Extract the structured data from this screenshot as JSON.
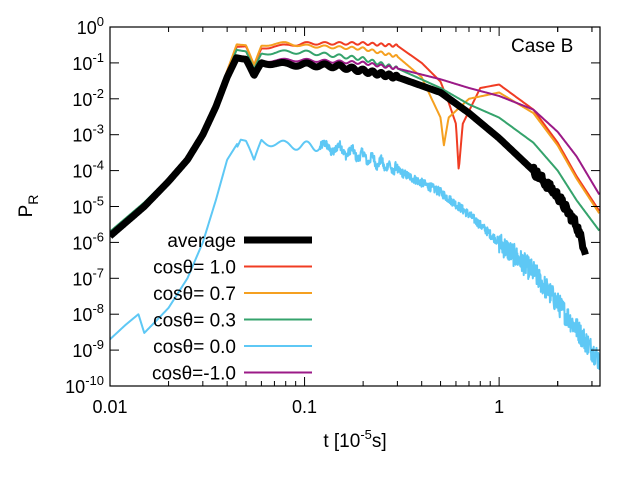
{
  "chart_data": {
    "type": "line",
    "title": "",
    "annotation": "Case B",
    "xlabel": {
      "base": "t [10",
      "sup": "-5",
      "suffix": "s]"
    },
    "ylabel": {
      "base": "P",
      "sub": "R"
    },
    "xscale": "log",
    "yscale": "log",
    "xlim": [
      0.01,
      3.3
    ],
    "ylim": [
      1e-10,
      1
    ],
    "grid": false,
    "legend_position": "left-lower",
    "x_ticks": [
      {
        "value": 0.01,
        "label": "0.01"
      },
      {
        "value": 0.1,
        "label": "0.1"
      },
      {
        "value": 1,
        "label": "1"
      }
    ],
    "y_ticks": [
      {
        "exp": 0,
        "base": "10",
        "sup": "0"
      },
      {
        "exp": -1,
        "base": "10",
        "sup": "-1"
      },
      {
        "exp": -2,
        "base": "10",
        "sup": "-2"
      },
      {
        "exp": -3,
        "base": "10",
        "sup": "-3"
      },
      {
        "exp": -4,
        "base": "10",
        "sup": "-4"
      },
      {
        "exp": -5,
        "base": "10",
        "sup": "-5"
      },
      {
        "exp": -6,
        "base": "10",
        "sup": "-6"
      },
      {
        "exp": -7,
        "base": "10",
        "sup": "-7"
      },
      {
        "exp": -8,
        "base": "10",
        "sup": "-8"
      },
      {
        "exp": -9,
        "base": "10",
        "sup": "-9"
      },
      {
        "exp": -10,
        "base": "10",
        "sup": "-10"
      }
    ],
    "series": [
      {
        "name": "average",
        "label": "average",
        "color": "#000000",
        "thick": true,
        "points": [
          [
            0.01,
            1.5e-06
          ],
          [
            0.015,
            1e-05
          ],
          [
            0.02,
            5e-05
          ],
          [
            0.025,
            0.0002
          ],
          [
            0.03,
            0.001
          ],
          [
            0.035,
            0.006
          ],
          [
            0.04,
            0.04
          ],
          [
            0.045,
            0.15
          ],
          [
            0.05,
            0.12
          ],
          [
            0.055,
            0.04
          ],
          [
            0.06,
            0.1
          ],
          [
            0.07,
            0.1
          ],
          [
            0.08,
            0.09
          ],
          [
            0.1,
            0.09
          ],
          [
            0.15,
            0.08
          ],
          [
            0.2,
            0.06
          ],
          [
            0.3,
            0.04
          ],
          [
            0.5,
            0.015
          ],
          [
            0.7,
            0.004
          ],
          [
            1.0,
            0.0008
          ],
          [
            1.5,
            0.0001
          ],
          [
            2.0,
            2e-05
          ],
          [
            2.5,
            3e-06
          ],
          [
            2.8,
            5e-07
          ]
        ],
        "osc": 0.04
      },
      {
        "name": "cos1.0",
        "label": "cosθ= 1.0",
        "color": "#f03c23",
        "points": [
          [
            0.01,
            1.8e-06
          ],
          [
            0.015,
            1.2e-05
          ],
          [
            0.02,
            6e-05
          ],
          [
            0.025,
            0.00025
          ],
          [
            0.03,
            0.0013
          ],
          [
            0.035,
            0.008
          ],
          [
            0.04,
            0.06
          ],
          [
            0.045,
            0.3
          ],
          [
            0.05,
            0.28
          ],
          [
            0.055,
            0.08
          ],
          [
            0.06,
            0.25
          ],
          [
            0.07,
            0.3
          ],
          [
            0.08,
            0.3
          ],
          [
            0.1,
            0.35
          ],
          [
            0.2,
            0.35
          ],
          [
            0.3,
            0.3
          ],
          [
            0.4,
            0.1
          ],
          [
            0.5,
            0.03
          ],
          [
            0.55,
            0.008
          ],
          [
            0.6,
            0.002
          ],
          [
            0.62,
            0.0001
          ],
          [
            0.65,
            0.002
          ],
          [
            0.8,
            0.02
          ],
          [
            1.0,
            0.025
          ],
          [
            1.5,
            0.005
          ],
          [
            2.0,
            0.0006
          ],
          [
            2.5,
            7e-05
          ],
          [
            3.3,
            7e-06
          ]
        ],
        "osc": 0.03
      },
      {
        "name": "cos0.7",
        "label": "cosθ= 0.7",
        "color": "#f5a020",
        "points": [
          [
            0.01,
            1.8e-06
          ],
          [
            0.015,
            1.2e-05
          ],
          [
            0.02,
            6e-05
          ],
          [
            0.025,
            0.00025
          ],
          [
            0.03,
            0.0013
          ],
          [
            0.035,
            0.008
          ],
          [
            0.04,
            0.06
          ],
          [
            0.045,
            0.35
          ],
          [
            0.05,
            0.3
          ],
          [
            0.055,
            0.08
          ],
          [
            0.06,
            0.3
          ],
          [
            0.07,
            0.35
          ],
          [
            0.08,
            0.35
          ],
          [
            0.1,
            0.3
          ],
          [
            0.2,
            0.25
          ],
          [
            0.3,
            0.15
          ],
          [
            0.4,
            0.04
          ],
          [
            0.45,
            0.01
          ],
          [
            0.5,
            0.003
          ],
          [
            0.52,
            0.0005
          ],
          [
            0.55,
            0.003
          ],
          [
            0.7,
            0.01
          ],
          [
            1.0,
            0.015
          ],
          [
            1.5,
            0.004
          ],
          [
            2.0,
            0.0005
          ],
          [
            2.5,
            6e-05
          ],
          [
            3.3,
            6e-06
          ]
        ],
        "osc": 0.03
      },
      {
        "name": "cos0.3",
        "label": "cosθ= 0.3",
        "color": "#35a36c",
        "points": [
          [
            0.01,
            2e-06
          ],
          [
            0.015,
            1.3e-05
          ],
          [
            0.02,
            6e-05
          ],
          [
            0.025,
            0.00025
          ],
          [
            0.03,
            0.0013
          ],
          [
            0.035,
            0.007
          ],
          [
            0.04,
            0.05
          ],
          [
            0.045,
            0.25
          ],
          [
            0.05,
            0.2
          ],
          [
            0.055,
            0.06
          ],
          [
            0.06,
            0.18
          ],
          [
            0.07,
            0.2
          ],
          [
            0.08,
            0.2
          ],
          [
            0.1,
            0.2
          ],
          [
            0.2,
            0.13
          ],
          [
            0.3,
            0.07
          ],
          [
            0.5,
            0.02
          ],
          [
            0.7,
            0.007
          ],
          [
            1.0,
            0.003
          ],
          [
            1.5,
            0.0006
          ],
          [
            2.0,
            0.0001
          ],
          [
            2.5,
            1.5e-05
          ],
          [
            3.3,
            2e-06
          ]
        ],
        "osc": 0.04
      },
      {
        "name": "cos0.0",
        "label": "cosθ= 0.0",
        "color": "#5ec8f5",
        "noisy": true,
        "points": [
          [
            0.01,
            2e-09
          ],
          [
            0.012,
            5e-09
          ],
          [
            0.014,
            1e-08
          ],
          [
            0.015,
            3e-09
          ],
          [
            0.017,
            6e-09
          ],
          [
            0.02,
            1.5e-08
          ],
          [
            0.025,
            1e-07
          ],
          [
            0.03,
            1e-06
          ],
          [
            0.035,
            1.5e-05
          ],
          [
            0.04,
            0.0002
          ],
          [
            0.047,
            0.0008
          ],
          [
            0.05,
            0.0006
          ],
          [
            0.055,
            0.00015
          ],
          [
            0.06,
            0.0007
          ],
          [
            0.07,
            0.0006
          ],
          [
            0.08,
            0.0005
          ],
          [
            0.1,
            0.0005
          ],
          [
            0.15,
            0.0004
          ],
          [
            0.2,
            0.00025
          ],
          [
            0.3,
            0.0001
          ],
          [
            0.5,
            2.5e-05
          ],
          [
            0.7,
            6e-06
          ],
          [
            1.0,
            1e-06
          ],
          [
            1.5,
            1.5e-07
          ],
          [
            2.0,
            2e-08
          ],
          [
            2.5,
            4e-09
          ],
          [
            3.3,
            5e-10
          ]
        ],
        "osc": 0.1
      },
      {
        "name": "cos-1.0",
        "label": "cosθ=-1.0",
        "color": "#9b1a87",
        "points": [
          [
            0.01,
            1.5e-06
          ],
          [
            0.015,
            1e-05
          ],
          [
            0.02,
            5e-05
          ],
          [
            0.025,
            0.0002
          ],
          [
            0.03,
            0.001
          ],
          [
            0.035,
            0.006
          ],
          [
            0.04,
            0.04
          ],
          [
            0.045,
            0.17
          ],
          [
            0.05,
            0.13
          ],
          [
            0.055,
            0.04
          ],
          [
            0.06,
            0.11
          ],
          [
            0.07,
            0.12
          ],
          [
            0.08,
            0.12
          ],
          [
            0.1,
            0.12
          ],
          [
            0.2,
            0.1
          ],
          [
            0.3,
            0.07
          ],
          [
            0.5,
            0.035
          ],
          [
            0.7,
            0.02
          ],
          [
            1.0,
            0.012
          ],
          [
            1.5,
            0.005
          ],
          [
            2.0,
            0.0012
          ],
          [
            2.5,
            0.00025
          ],
          [
            3.3,
            2e-05
          ]
        ],
        "osc": 0.03
      }
    ]
  }
}
